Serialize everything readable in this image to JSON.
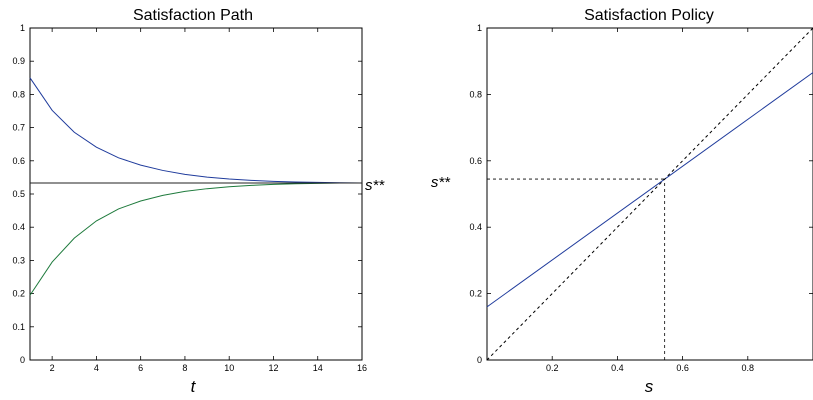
{
  "chart_data": [
    {
      "type": "line",
      "title": "Satisfaction Path",
      "xlabel": "t",
      "ylabel": "",
      "xlim": [
        1,
        16
      ],
      "ylim": [
        0,
        1
      ],
      "xticks": [
        2,
        4,
        6,
        8,
        10,
        12,
        14,
        16
      ],
      "yticks": [
        0,
        0.1,
        0.2,
        0.3,
        0.4,
        0.5,
        0.6,
        0.7,
        0.8,
        0.9,
        1
      ],
      "annotations": [
        {
          "text": "s**",
          "at_y": 0.533
        }
      ],
      "grid": false,
      "x": [
        1,
        2,
        3,
        4,
        5,
        6,
        7,
        8,
        9,
        10,
        11,
        12,
        13,
        14,
        15,
        16
      ],
      "series": [
        {
          "color": "#1f3b9c",
          "style": "solid",
          "values": [
            0.85,
            0.752,
            0.686,
            0.641,
            0.609,
            0.587,
            0.571,
            0.559,
            0.551,
            0.545,
            0.541,
            0.538,
            0.536,
            0.535,
            0.534,
            0.533
          ]
        },
        {
          "color": "#1e7a3c",
          "style": "solid",
          "values": [
            0.195,
            0.295,
            0.367,
            0.419,
            0.455,
            0.479,
            0.496,
            0.508,
            0.516,
            0.522,
            0.526,
            0.529,
            0.531,
            0.532,
            0.533,
            0.533
          ]
        },
        {
          "color": "#222222",
          "style": "solid",
          "values": [
            0.533,
            0.533,
            0.533,
            0.533,
            0.533,
            0.533,
            0.533,
            0.533,
            0.533,
            0.533,
            0.533,
            0.533,
            0.533,
            0.533,
            0.533,
            0.533
          ]
        }
      ]
    },
    {
      "type": "line",
      "title": "Satisfaction Policy",
      "xlabel": "s",
      "ylabel": "",
      "xlim": [
        0,
        1
      ],
      "ylim": [
        0,
        1
      ],
      "xticks": [
        0.2,
        0.4,
        0.6,
        0.8
      ],
      "yticks": [
        0,
        0.2,
        0.4,
        0.6,
        0.8,
        1
      ],
      "annotations": [
        {
          "text": "s**",
          "at_y": 0.545
        }
      ],
      "grid": false,
      "x": [
        0,
        1
      ],
      "series": [
        {
          "color": "#1f3b9c",
          "style": "solid",
          "values": [
            0.16,
            0.866
          ]
        },
        {
          "color": "#000000",
          "style": "dashed",
          "values": [
            0,
            1
          ]
        }
      ],
      "reference_lines": [
        {
          "style": "dashed",
          "points": [
            [
              0,
              0.545
            ],
            [
              0.545,
              0.545
            ]
          ]
        },
        {
          "style": "dashed",
          "points": [
            [
              0.545,
              0
            ],
            [
              0.545,
              0.545
            ]
          ]
        }
      ]
    }
  ]
}
